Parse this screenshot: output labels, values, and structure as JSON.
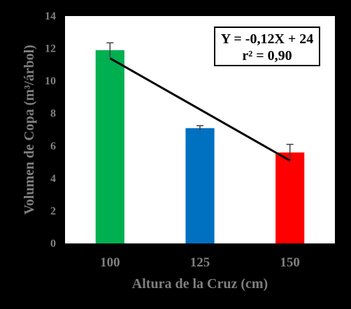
{
  "chart_data": {
    "type": "bar",
    "categories": [
      "100",
      "125",
      "150"
    ],
    "values": [
      11.9,
      7.1,
      5.6
    ],
    "error": [
      0.45,
      0.15,
      0.5
    ],
    "colors": [
      "#00b050",
      "#0070c0",
      "#ff0000"
    ],
    "ylim": [
      0,
      14
    ],
    "yticks": [
      "0",
      "2",
      "4",
      "6",
      "8",
      "10",
      "12",
      "14"
    ],
    "xlabel": "Altura de la Cruz (cm)",
    "ylabel": "Volumen de Copa (m³/árbol)",
    "grid": false,
    "trendline": {
      "x_from": "100",
      "x_to": "150",
      "y_from": 11.4,
      "y_to": 5.1,
      "color": "#000000"
    },
    "annotation": {
      "line1": "Y = -0,12X + 24",
      "line2": "r² = 0,90"
    }
  }
}
